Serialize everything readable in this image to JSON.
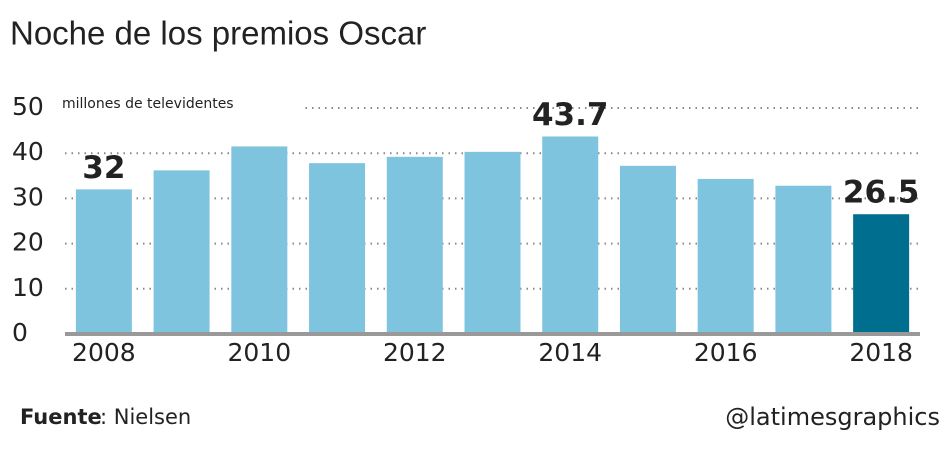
{
  "chart_data": {
    "type": "bar",
    "title": "Noche de los premios Oscar",
    "subtitle": "millones de televidentes",
    "categories": [
      "2008",
      null,
      "2010",
      null,
      "2012",
      null,
      "2014",
      null,
      "2016",
      null,
      "2018"
    ],
    "values": [
      32,
      36.2,
      41.5,
      37.8,
      39.2,
      40.3,
      43.7,
      37.2,
      34.3,
      32.8,
      26.5
    ],
    "value_labels": [
      "32",
      null,
      null,
      null,
      null,
      null,
      "43.7",
      null,
      null,
      null,
      "26.5"
    ],
    "colors": [
      "#7fc4df",
      "#7fc4df",
      "#7fc4df",
      "#7fc4df",
      "#7fc4df",
      "#7fc4df",
      "#7fc4df",
      "#7fc4df",
      "#7fc4df",
      "#7fc4df",
      "#006e8f"
    ],
    "ylim": [
      0,
      50
    ],
    "yticks": [
      0,
      10,
      20,
      30,
      40,
      50
    ],
    "grid": true,
    "source_label": "Fuente",
    "source_text": ": Nielsen",
    "credit": "@latimesgraphics"
  }
}
